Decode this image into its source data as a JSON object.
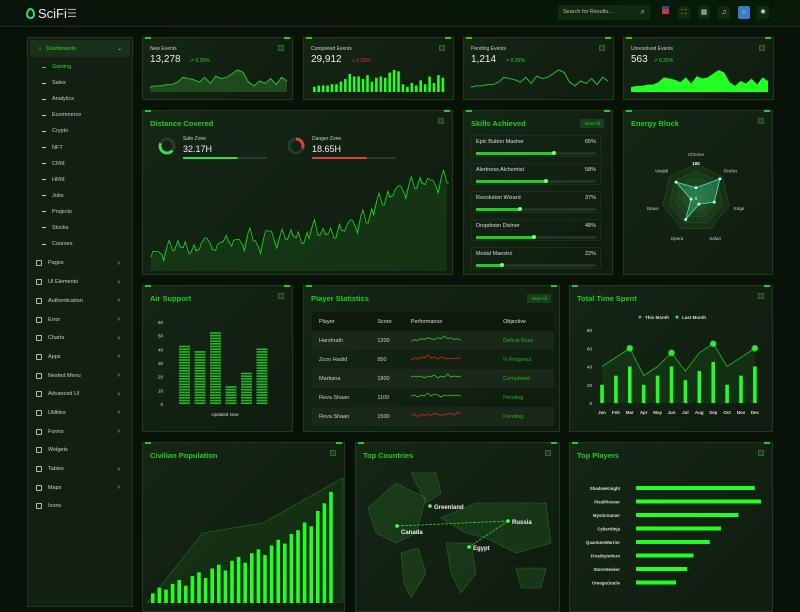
{
  "header": {
    "brand": "SciFi",
    "search_placeholder": "Search for Results..."
  },
  "sidebar": {
    "dashboards": "Dashboards",
    "sub": [
      "Gaming",
      "Sales",
      "Analytics",
      "Ecommerce",
      "Crypto",
      "NFT",
      "CRM",
      "HRM",
      "Jobs",
      "Projects",
      "Stocks",
      "Courses"
    ],
    "active_sub": "Gaming",
    "items": [
      {
        "label": "Pages",
        "arrow": true
      },
      {
        "label": "UI Elements",
        "arrow": true
      },
      {
        "label": "Authentication",
        "arrow": true
      },
      {
        "label": "Error",
        "arrow": true
      },
      {
        "label": "Charts",
        "arrow": true
      },
      {
        "label": "Apps",
        "arrow": true
      },
      {
        "label": "Nested Menu",
        "arrow": true
      },
      {
        "label": "Advanced UI",
        "arrow": true
      },
      {
        "label": "Utilities",
        "arrow": true
      },
      {
        "label": "Forms",
        "arrow": true
      },
      {
        "label": "Widgets",
        "arrow": false
      },
      {
        "label": "Tables",
        "arrow": true
      },
      {
        "label": "Maps",
        "arrow": true
      },
      {
        "label": "Icons",
        "arrow": false
      }
    ]
  },
  "stats": [
    {
      "label": "New Events",
      "value": "13,278",
      "change": "0.25%",
      "dir": "up",
      "type": "area",
      "trend": [
        4,
        5,
        5,
        6,
        6,
        8,
        12,
        11,
        10,
        8,
        12,
        7,
        13,
        11,
        12,
        15,
        18,
        16,
        8,
        5,
        9,
        7,
        11,
        6,
        12,
        9
      ]
    },
    {
      "label": "Completed Events",
      "value": "29,912",
      "change": "0.25%",
      "dir": "down",
      "type": "bar",
      "trend": [
        4,
        5,
        5,
        5,
        6,
        6,
        8,
        10,
        14,
        12,
        12,
        10,
        13,
        8,
        11,
        12,
        11,
        15,
        17,
        16,
        6,
        4,
        7,
        5,
        9,
        6,
        12,
        7,
        13,
        11
      ]
    },
    {
      "label": "Pending Events",
      "value": "1,214",
      "change": "0.25%",
      "dir": "up",
      "type": "line",
      "trend": [
        4,
        5,
        5,
        6,
        6,
        8,
        12,
        11,
        10,
        8,
        12,
        7,
        13,
        11,
        12,
        15,
        18,
        16,
        8,
        5,
        9,
        7,
        11,
        6,
        12,
        9
      ]
    },
    {
      "label": "Unresolved Events",
      "value": "563",
      "change": "0.25%",
      "dir": "up",
      "type": "filled",
      "trend": [
        4,
        5,
        5,
        6,
        6,
        8,
        12,
        11,
        10,
        8,
        12,
        7,
        13,
        11,
        12,
        15,
        18,
        16,
        8,
        5,
        9,
        7,
        11,
        6,
        12,
        9
      ]
    }
  ],
  "distance": {
    "title": "Distance Covered",
    "safe": {
      "label": "Safe Zone",
      "value": "32.17H",
      "progress": 0.65,
      "color": "#33dd55"
    },
    "danger": {
      "label": "Danger Zone",
      "value": "18.65H",
      "progress": 0.65,
      "color": "#e04040"
    },
    "series": [
      10,
      14,
      12,
      18,
      15,
      22,
      17,
      13,
      19,
      16,
      24,
      20,
      15,
      21,
      26,
      18,
      23,
      19,
      27,
      22,
      17,
      25,
      29,
      21,
      26,
      23,
      30,
      24,
      20,
      28,
      33,
      26,
      31,
      27,
      24,
      34,
      29,
      37,
      32,
      40,
      35,
      45,
      52,
      48,
      58,
      55,
      62,
      57,
      64,
      60,
      68,
      63,
      66,
      61,
      69,
      64
    ]
  },
  "skills": {
    "title": "Skills Achieved",
    "view_all": "View All",
    "items": [
      {
        "name": "Epic Button Masher",
        "pct": 65
      },
      {
        "name": "Alertness Alchemist",
        "pct": 58
      },
      {
        "name": "Resolution Wizard",
        "pct": 37
      },
      {
        "name": "Dropdown Diviner",
        "pct": 48
      },
      {
        "name": "Modal Maestro",
        "pct": 22
      }
    ]
  },
  "chart_data": [
    {
      "id": "energy",
      "type": "radar",
      "title": "Energy Block",
      "axes": [
        "Chrome",
        "Firefox",
        "Edge",
        "Safari",
        "Opera",
        "Brave",
        "Vivaldi"
      ],
      "values": [
        30,
        90,
        55,
        20,
        70,
        15,
        75
      ],
      "max": 100,
      "max_label": "100",
      "zero_label": "0"
    },
    {
      "id": "air",
      "type": "bar",
      "title": "Air Support",
      "values": [
        43,
        38,
        52,
        13,
        23,
        40
      ],
      "yticks": [
        0,
        10,
        20,
        30,
        40,
        50,
        60
      ],
      "ylim": [
        0,
        60
      ],
      "xlabel": "Updated Now"
    },
    {
      "id": "time",
      "type": "bar+line",
      "title": "Total Time Spent",
      "categories": [
        "Jan",
        "Feb",
        "Mar",
        "Apr",
        "May",
        "Jun",
        "Jul",
        "Aug",
        "Sep",
        "Oct",
        "Nov",
        "Dec"
      ],
      "series": [
        {
          "name": "This Month",
          "values": [
            40,
            50,
            60,
            30,
            40,
            55,
            35,
            55,
            65,
            40,
            50,
            60
          ],
          "color": "#1a9a1a"
        },
        {
          "name": "Last Month",
          "values": [
            20,
            30,
            40,
            20,
            30,
            40,
            25,
            35,
            45,
            20,
            30,
            40
          ],
          "color": "#22ff22"
        }
      ],
      "yticks": [
        0,
        20,
        40,
        60,
        80
      ],
      "ylim": [
        0,
        80
      ]
    },
    {
      "id": "civ",
      "type": "bar",
      "title": "Civilian Population",
      "values": [
        5,
        8,
        7,
        10,
        12,
        9,
        14,
        16,
        13,
        18,
        20,
        17,
        22,
        24,
        21,
        26,
        28,
        25,
        30,
        33,
        31,
        36,
        38,
        42,
        40,
        48,
        52,
        58
      ]
    },
    {
      "id": "players",
      "type": "hbar",
      "title": "Top Players",
      "categories": [
        "ShadowKnight",
        "PixelPioneer",
        "MysticGamer",
        "CyberNinja",
        "QuantumWarrior",
        "FrostbyteHero",
        "StormSeeker",
        "OmegaOracle"
      ],
      "values": [
        95,
        100,
        82,
        68,
        59,
        46,
        41,
        32
      ]
    }
  ],
  "players": {
    "title": "Player Statistics",
    "view_all": "View All",
    "columns": [
      "Player",
      "Score",
      "Performance",
      "Objective"
    ],
    "rows": [
      {
        "name": "Harshrath",
        "score": "1200",
        "objective": "Defeat Boss",
        "color": "#33cc33",
        "trend": [
          3,
          5,
          4,
          6,
          5,
          7,
          6,
          5,
          7,
          6,
          9,
          6,
          7,
          5,
          6,
          4
        ]
      },
      {
        "name": "Zozo Hadid",
        "score": "950",
        "objective": "In Progress",
        "color": "#dd2222",
        "trend": [
          3,
          5,
          4,
          6,
          5,
          8,
          5,
          6,
          4,
          6,
          5,
          4,
          5,
          4,
          5,
          5
        ]
      },
      {
        "name": "Martiana",
        "score": "1800",
        "objective": "Completed",
        "color": "#33cc33",
        "trend": [
          5,
          6,
          5,
          6,
          4,
          6,
          5,
          7,
          4,
          6,
          5,
          8,
          5,
          6,
          5,
          6
        ]
      },
      {
        "name": "Reva Shaan",
        "score": "1100",
        "objective": "Pending",
        "color": "#33cc33",
        "trend": [
          5,
          6,
          4,
          6,
          5,
          8,
          5,
          7,
          6,
          4,
          6,
          5,
          6,
          5,
          6,
          5
        ]
      },
      {
        "name": "Reva Shaan",
        "score": "1500",
        "objective": "Pending",
        "color": "#dd2222",
        "trend": [
          4,
          5,
          3,
          5,
          4,
          5,
          4,
          6,
          5,
          4,
          5,
          5,
          6,
          4,
          7,
          5
        ]
      }
    ]
  },
  "countries": {
    "title": "Top Countries",
    "labels": [
      "Greenland",
      "Canada",
      "Russia",
      "Egypt"
    ]
  },
  "colors": {
    "accent": "#22ff22",
    "title": "#22cc22",
    "danger": "#e04040",
    "bg": "#081208",
    "card": "#132013"
  }
}
